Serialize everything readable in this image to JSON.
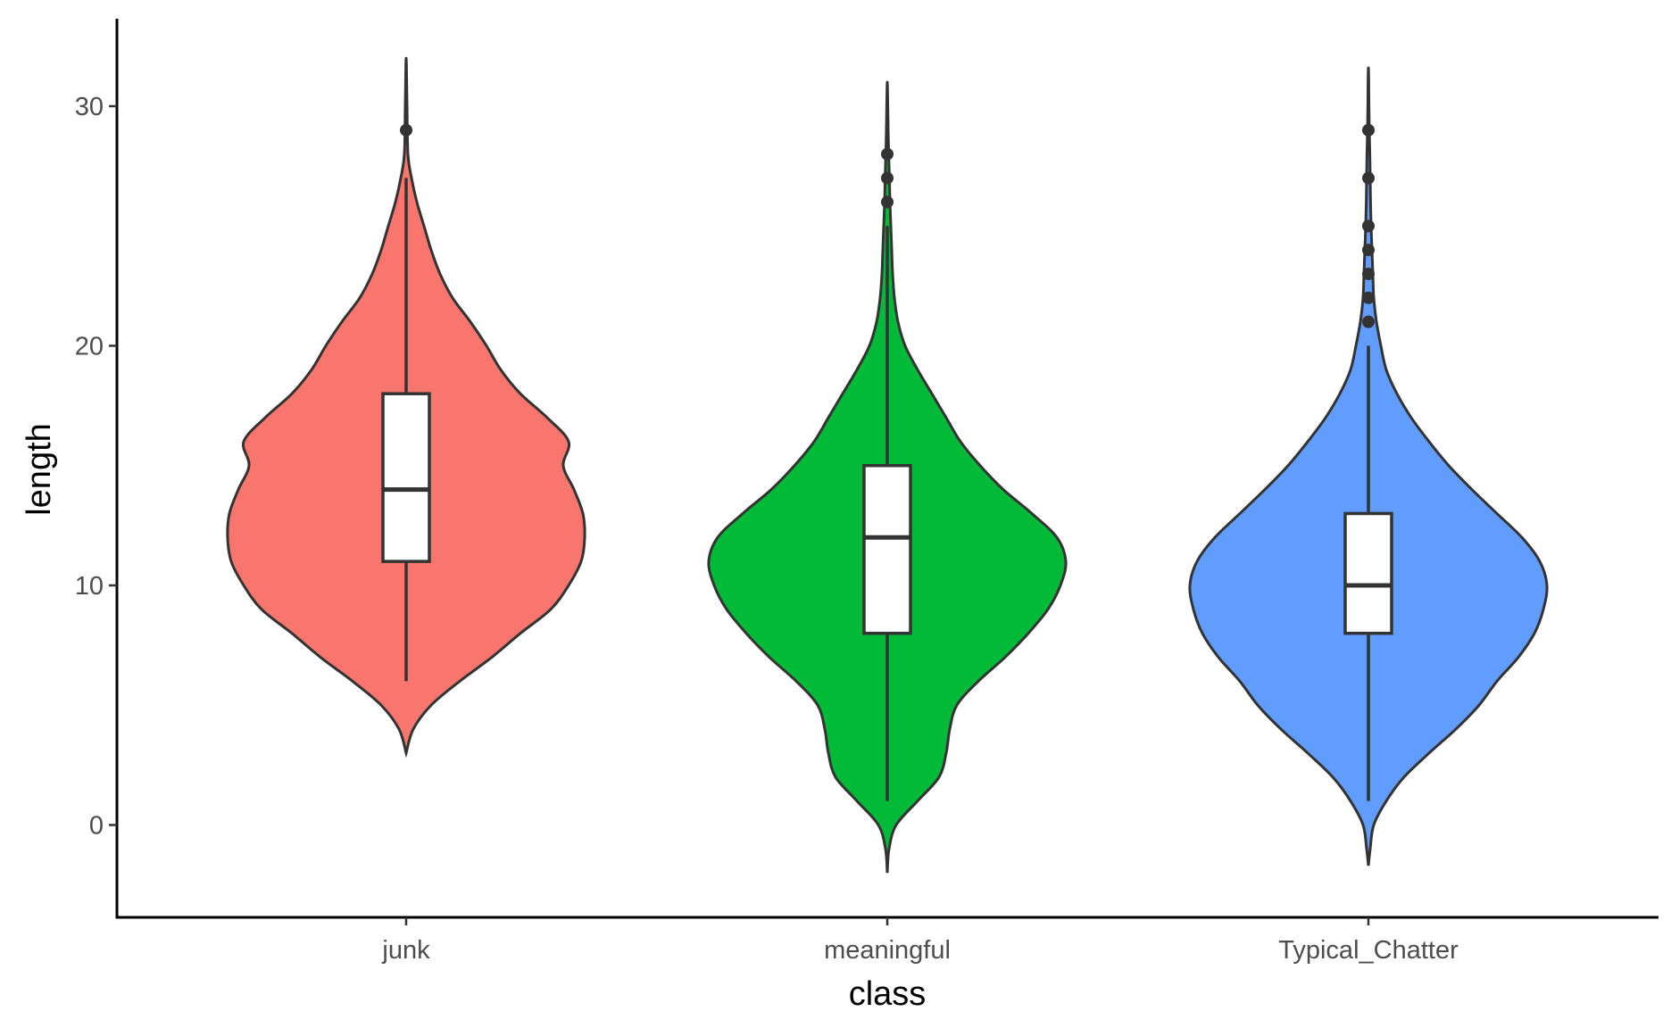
{
  "chart_data": {
    "type": "violin",
    "xlabel": "class",
    "ylabel": "length",
    "ylim": [
      -3.8,
      33.4
    ],
    "y_ticks": [
      0,
      10,
      20,
      30
    ],
    "categories": [
      "junk",
      "meaningful",
      "Typical_Chatter"
    ],
    "series": [
      {
        "name": "junk",
        "color": "#F8766D",
        "violin_range": [
          3,
          32
        ],
        "box": {
          "lower_whisker": 6,
          "q1": 11,
          "median": 14,
          "q3": 18,
          "upper_whisker": 27
        },
        "outliers": [
          29
        ],
        "density": [
          [
            3,
            0.01
          ],
          [
            4,
            0.04
          ],
          [
            5,
            0.14
          ],
          [
            6,
            0.3
          ],
          [
            7,
            0.48
          ],
          [
            8,
            0.64
          ],
          [
            9,
            0.81
          ],
          [
            10,
            0.91
          ],
          [
            11,
            0.98
          ],
          [
            12,
            1.0
          ],
          [
            13,
            0.99
          ],
          [
            14,
            0.94
          ],
          [
            15,
            0.88
          ],
          [
            16,
            0.91
          ],
          [
            17,
            0.79
          ],
          [
            18,
            0.64
          ],
          [
            19,
            0.53
          ],
          [
            20,
            0.45
          ],
          [
            21,
            0.36
          ],
          [
            22,
            0.26
          ],
          [
            23,
            0.19
          ],
          [
            24,
            0.14
          ],
          [
            25,
            0.1
          ],
          [
            26,
            0.06
          ],
          [
            27,
            0.03
          ],
          [
            28,
            0.01
          ],
          [
            30,
            0.005
          ],
          [
            32,
            0.002
          ]
        ]
      },
      {
        "name": "meaningful",
        "color": "#00BA38",
        "violin_range": [
          -2,
          31
        ],
        "box": {
          "lower_whisker": 1,
          "q1": 8,
          "median": 12,
          "q3": 15,
          "upper_whisker": 25
        },
        "outliers": [
          26,
          27,
          28
        ],
        "density": [
          [
            -2,
            0.002
          ],
          [
            -1,
            0.01
          ],
          [
            0,
            0.05
          ],
          [
            1,
            0.17
          ],
          [
            2,
            0.29
          ],
          [
            3,
            0.33
          ],
          [
            4,
            0.35
          ],
          [
            5,
            0.39
          ],
          [
            6,
            0.51
          ],
          [
            7,
            0.66
          ],
          [
            8,
            0.79
          ],
          [
            9,
            0.9
          ],
          [
            10,
            0.97
          ],
          [
            11,
            1.0
          ],
          [
            12,
            0.95
          ],
          [
            13,
            0.81
          ],
          [
            14,
            0.65
          ],
          [
            15,
            0.52
          ],
          [
            16,
            0.41
          ],
          [
            17,
            0.33
          ],
          [
            18,
            0.25
          ],
          [
            19,
            0.17
          ],
          [
            20,
            0.1
          ],
          [
            21,
            0.06
          ],
          [
            22,
            0.04
          ],
          [
            23,
            0.03
          ],
          [
            24,
            0.025
          ],
          [
            25,
            0.02
          ],
          [
            26,
            0.015
          ],
          [
            27,
            0.012
          ],
          [
            28,
            0.008
          ],
          [
            29,
            0.005
          ],
          [
            30,
            0.003
          ],
          [
            31,
            0.001
          ]
        ]
      },
      {
        "name": "Typical_Chatter",
        "color": "#619CFF",
        "violin_range": [
          -1.7,
          31.6
        ],
        "box": {
          "lower_whisker": 1,
          "q1": 8,
          "median": 10,
          "q3": 13,
          "upper_whisker": 20
        },
        "outliers": [
          21,
          22,
          23,
          24,
          25,
          27,
          29
        ],
        "density": [
          [
            -1.7,
            0.002
          ],
          [
            -1,
            0.01
          ],
          [
            0,
            0.03
          ],
          [
            1,
            0.1
          ],
          [
            2,
            0.2
          ],
          [
            3,
            0.34
          ],
          [
            4,
            0.49
          ],
          [
            5,
            0.62
          ],
          [
            6,
            0.72
          ],
          [
            7,
            0.84
          ],
          [
            8,
            0.93
          ],
          [
            9,
            0.98
          ],
          [
            10,
            1.0
          ],
          [
            11,
            0.96
          ],
          [
            12,
            0.86
          ],
          [
            13,
            0.72
          ],
          [
            14,
            0.58
          ],
          [
            15,
            0.45
          ],
          [
            16,
            0.34
          ],
          [
            17,
            0.24
          ],
          [
            18,
            0.16
          ],
          [
            19,
            0.1
          ],
          [
            20,
            0.07
          ],
          [
            21,
            0.045
          ],
          [
            22,
            0.03
          ],
          [
            23,
            0.025
          ],
          [
            24,
            0.02
          ],
          [
            25,
            0.015
          ],
          [
            26,
            0.012
          ],
          [
            27,
            0.01
          ],
          [
            28,
            0.008
          ],
          [
            29,
            0.005
          ],
          [
            30,
            0.003
          ],
          [
            31,
            0.002
          ]
        ]
      }
    ]
  }
}
